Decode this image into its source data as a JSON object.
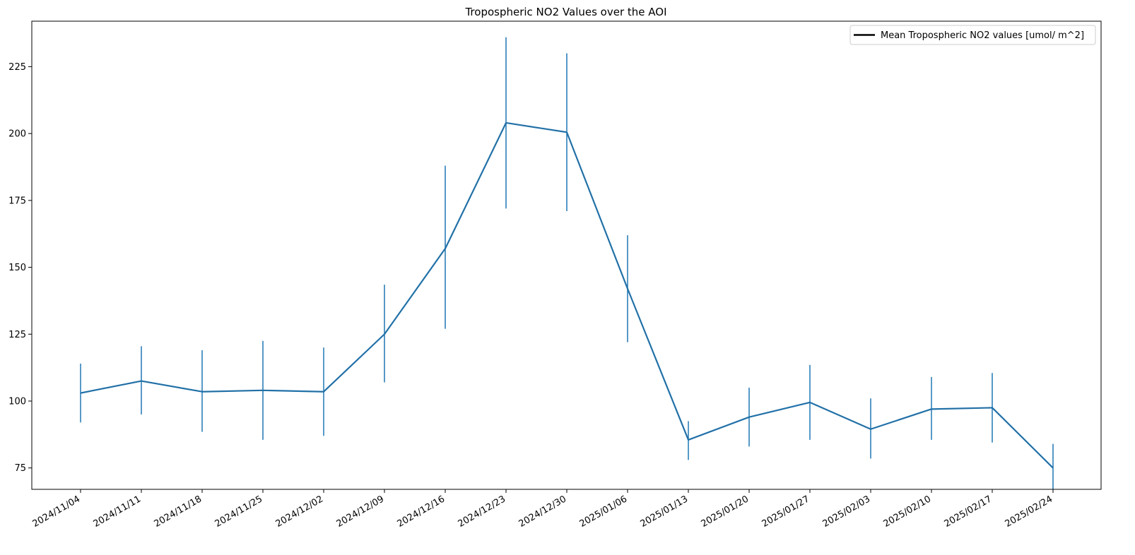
{
  "chart_data": {
    "type": "line",
    "title": "Tropospheric NO2 Values over the AOI",
    "xlabel": "",
    "ylabel": "",
    "x": [
      "2024/11/04",
      "2024/11/11",
      "2024/11/18",
      "2024/11/25",
      "2024/12/02",
      "2024/12/09",
      "2024/12/16",
      "2024/12/23",
      "2024/12/30",
      "2025/01/06",
      "2025/01/13",
      "2025/01/20",
      "2025/01/27",
      "2025/02/03",
      "2025/02/10",
      "2025/02/17",
      "2025/02/24"
    ],
    "series": [
      {
        "name": "Mean Tropospheric NO2 values [umol/ m^2]",
        "color": "#1f77b4",
        "values": [
          103,
          107.5,
          103.5,
          104,
          103.5,
          125,
          157,
          204,
          200.5,
          142,
          85.5,
          94,
          99.5,
          89.5,
          97,
          97.5,
          75
        ],
        "error_low": [
          92,
          95,
          88.5,
          85.5,
          87,
          107,
          127,
          172,
          171,
          122,
          78,
          83,
          85.5,
          78.5,
          85.5,
          84.5,
          67
        ],
        "error_high": [
          114,
          120.5,
          119,
          122.5,
          120,
          143.5,
          188,
          236,
          230,
          162,
          92.5,
          105,
          113.5,
          101,
          109,
          110.5,
          84
        ]
      }
    ],
    "ylim": [
      67,
      242
    ],
    "yticks": [
      75,
      100,
      125,
      150,
      175,
      200,
      225
    ],
    "grid": false,
    "legend": {
      "placement": "top-right",
      "label": "Mean Tropospheric NO2 values [umol/ m^2]",
      "line_color": "#000000"
    }
  }
}
